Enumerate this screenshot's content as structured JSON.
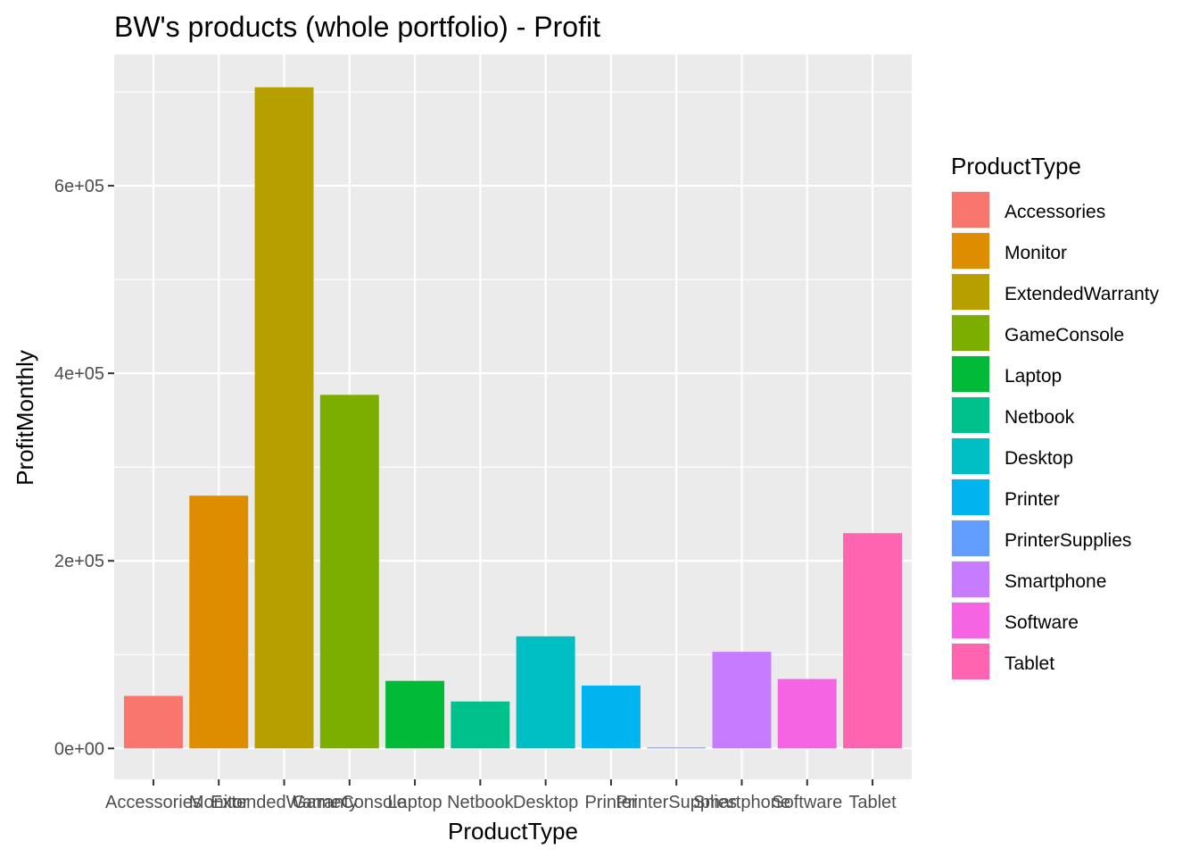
{
  "chart_data": {
    "type": "bar",
    "title": "BW's products (whole portfolio) - Profit",
    "xlabel": "ProductType",
    "ylabel": "ProfitMonthly",
    "categories": [
      "Accessories",
      "Monitor",
      "ExtendedWarranty",
      "GameConsole",
      "Laptop",
      "Netbook",
      "Desktop",
      "Printer",
      "PrinterSupplies",
      "Smartphone",
      "Software",
      "Tablet"
    ],
    "values": [
      56000,
      269500,
      705000,
      377000,
      72000,
      50000,
      119500,
      67000,
      1000,
      103000,
      74000,
      229500
    ],
    "colors": [
      "#F8766D",
      "#DE8C00",
      "#B79F00",
      "#7CAE00",
      "#00BA38",
      "#00C08B",
      "#00BFC4",
      "#00B4F0",
      "#619CFF",
      "#C77CFF",
      "#F564E3",
      "#FF64B0"
    ],
    "yticks": [
      0,
      200000,
      400000,
      600000
    ],
    "ytick_labels": [
      "0e+00",
      "2e+05",
      "4e+05",
      "6e+05"
    ],
    "ylim": [
      -33000,
      740000
    ],
    "grid": true,
    "legend": {
      "title": "ProductType",
      "placement": "right"
    }
  }
}
